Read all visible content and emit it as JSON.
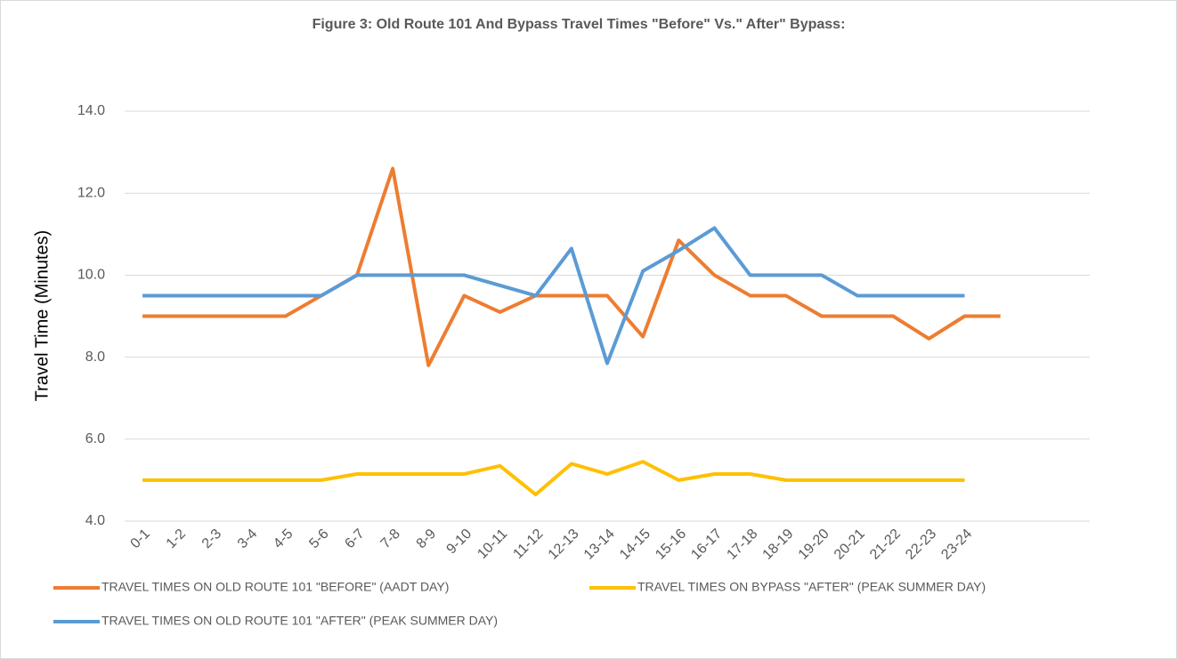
{
  "chart_data": {
    "type": "line",
    "title": "Figure 3: Old Route 101 And Bypass Travel Times \"Before\" Vs.\" After\" Bypass:",
    "y_label": "Travel Time (Minutes)",
    "categories": [
      "0-1",
      "1-2",
      "2-3",
      "3-4",
      "4-5",
      "5-6",
      "6-7",
      "7-8",
      "8-9",
      "9-10",
      "10-11",
      "11-12",
      "12-13",
      "13-14",
      "14-15",
      "15-16",
      "16-17",
      "17-18",
      "18-19",
      "19-20",
      "20-21",
      "21-22",
      "22-23",
      "23-24",
      null,
      null,
      null
    ],
    "series": [
      {
        "name": "TRAVEL TIMES ON OLD ROUTE 101 \"BEFORE\" (AADT DAY)",
        "color": "#ed7d31",
        "values": [
          9.0,
          9.0,
          9.0,
          9.0,
          9.0,
          9.5,
          10.0,
          12.6,
          7.8,
          9.5,
          9.1,
          9.5,
          9.5,
          9.5,
          8.5,
          10.85,
          10.0,
          9.5,
          9.5,
          9.0,
          9.0,
          9.0,
          8.45,
          9.0,
          9.0,
          null,
          null
        ]
      },
      {
        "name": "TRAVEL TIMES ON BYPASS \"AFTER\" (PEAK SUMMER DAY)",
        "color": "#ffc000",
        "values": [
          5.0,
          5.0,
          5.0,
          5.0,
          5.0,
          5.0,
          5.15,
          5.15,
          5.15,
          5.15,
          5.35,
          4.65,
          5.4,
          5.15,
          5.45,
          5.0,
          5.15,
          5.15,
          5.0,
          5.0,
          5.0,
          5.0,
          5.0,
          5.0,
          null,
          null,
          null
        ]
      },
      {
        "name": "TRAVEL TIMES ON OLD ROUTE 101 \"AFTER\" (PEAK SUMMER DAY)",
        "color": "#5b9bd5",
        "values": [
          9.5,
          9.5,
          9.5,
          9.5,
          9.5,
          9.5,
          10.0,
          10.0,
          10.0,
          10.0,
          9.75,
          9.5,
          10.65,
          7.85,
          10.1,
          10.6,
          11.15,
          10.0,
          10.0,
          10.0,
          9.5,
          9.5,
          9.5,
          9.5,
          null,
          null,
          null
        ]
      }
    ],
    "ylim": [
      4,
      14
    ],
    "yticks": [
      {
        "value": 4,
        "label": "4.0"
      },
      {
        "value": 6,
        "label": "6.0"
      },
      {
        "value": 8,
        "label": "8.0"
      },
      {
        "value": 10,
        "label": "10.0"
      },
      {
        "value": 12,
        "label": "12.0"
      },
      {
        "value": 14,
        "label": "14.0"
      }
    ],
    "grid": true,
    "legend": "bottom"
  }
}
